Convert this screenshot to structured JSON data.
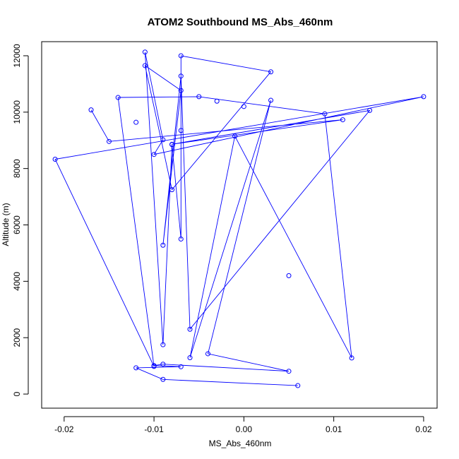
{
  "chart_data": {
    "type": "line",
    "title": "ATOM2 Southbound MS_Abs_460nm",
    "xlabel": "MS_Abs_460nm",
    "ylabel": "Altitude (m)",
    "xlim": [
      -0.0225,
      0.0215
    ],
    "ylim": [
      -500,
      12500
    ],
    "x_ticks": [
      -0.02,
      -0.01,
      0.0,
      0.01,
      0.02
    ],
    "x_tick_labels": [
      "-0.02",
      "-0.01",
      "0.00",
      "0.01",
      "0.02"
    ],
    "y_ticks": [
      0,
      2000,
      4000,
      6000,
      8000,
      10000,
      12000
    ],
    "y_tick_labels": [
      "0",
      "2000",
      "4000",
      "6000",
      "8000",
      "10000",
      "12000"
    ],
    "grid": false,
    "marker": "open-circle",
    "series": [
      {
        "color": "#0000ff",
        "points": [
          {
            "x": 0.006,
            "y": 300
          },
          {
            "x": -0.009,
            "y": 520
          },
          {
            "x": -0.012,
            "y": 930
          },
          {
            "x": -0.007,
            "y": 970
          },
          {
            "x": -0.01,
            "y": 1010
          },
          {
            "x": -0.009,
            "y": 1060
          },
          {
            "x": 0.005,
            "y": 810
          },
          {
            "x": -0.004,
            "y": 1430
          },
          {
            "x": 0.003,
            "y": 10420
          },
          {
            "x": -0.006,
            "y": 1290
          },
          {
            "x": -0.001,
            "y": 9150
          },
          {
            "x": 0.012,
            "y": 1280
          },
          {
            "x": 0.009,
            "y": 9940
          },
          {
            "x": -0.005,
            "y": 10550
          },
          {
            "x": -0.014,
            "y": 10520
          },
          {
            "x": -0.01,
            "y": 980
          },
          {
            "x": -0.021,
            "y": 8330
          },
          {
            "x": 0.02,
            "y": 10550
          },
          {
            "x": -0.01,
            "y": 8500
          },
          {
            "x": -0.009,
            "y": 9020
          },
          {
            "x": -0.011,
            "y": 12130
          },
          {
            "x": -0.009,
            "y": 1750
          },
          {
            "x": -0.008,
            "y": 8850
          },
          {
            "x": -0.007,
            "y": 5500
          },
          {
            "x": -0.007,
            "y": 12000
          },
          {
            "x": 0.003,
            "y": 11430
          },
          {
            "x": -0.008,
            "y": 7250
          },
          {
            "x": -0.011,
            "y": 11650
          },
          {
            "x": -0.007,
            "y": 10770
          },
          {
            "x": -0.009,
            "y": 5280
          },
          {
            "x": -0.007,
            "y": 11280
          },
          {
            "x": -0.006,
            "y": 2300
          },
          {
            "x": 0.014,
            "y": 10060
          },
          {
            "x": -0.008,
            "y": 8860
          },
          {
            "x": 0.011,
            "y": 9730
          },
          {
            "x": -0.015,
            "y": 8960
          },
          {
            "x": -0.017,
            "y": 10080
          }
        ]
      }
    ],
    "extra_points": [
      {
        "x": -0.012,
        "y": 9640
      },
      {
        "x": -0.003,
        "y": 10390
      },
      {
        "x": -0.007,
        "y": 9350
      },
      {
        "x": 0.0,
        "y": 10200
      },
      {
        "x": 0.005,
        "y": 4200
      }
    ]
  }
}
